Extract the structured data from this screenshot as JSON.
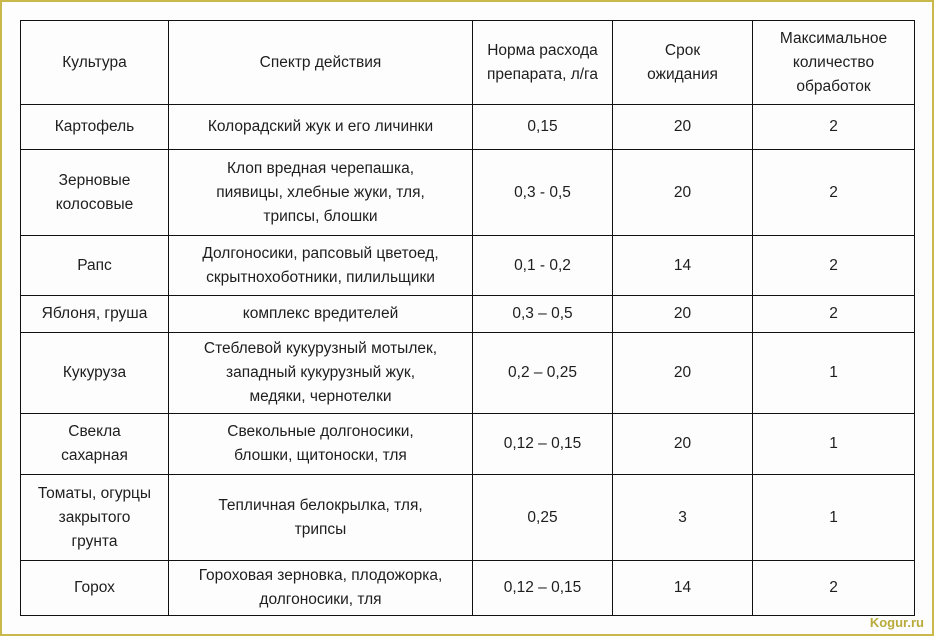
{
  "table": {
    "headers": [
      "Культура",
      "Спектр действия",
      "Норма расхода\nпрепарата, л/га",
      "Срок\nожидания",
      "Максимальное\nколичество\nобработок"
    ],
    "rows": [
      [
        "Картофель",
        "Колорадский жук и его личинки",
        "0,15",
        "20",
        "2"
      ],
      [
        "Зерновые\nколосовые",
        "Клоп вредная черепашка,\nпиявицы, хлебные жуки, тля,\nтрипсы, блошки",
        "0,3 - 0,5",
        "20",
        "2"
      ],
      [
        "Рапс",
        "Долгоносики, рапсовый цветоед,\nскрытнохоботники, пилильщики",
        "0,1 - 0,2",
        "14",
        "2"
      ],
      [
        "Яблоня, груша",
        "комплекс вредителей",
        "0,3 – 0,5",
        "20",
        "2"
      ],
      [
        "Кукуруза",
        "Стеблевой кукурузный мотылек,\nзападный кукурузный жук,\nмедяки, чернотелки",
        "0,2 – 0,25",
        "20",
        "1"
      ],
      [
        "Свекла\nсахарная",
        "Свекольные долгоносики,\nблошки, щитоноски, тля",
        "0,12 – 0,15",
        "20",
        "1"
      ],
      [
        "Томаты, огурцы\nзакрытого\nгрунта",
        "Тепличная белокрылка, тля,\nтрипсы",
        "0,25",
        "3",
        "1"
      ],
      [
        "Горох",
        "Гороховая зерновка, плодожорка,\nдолгоносики, тля",
        "0,12 – 0,15",
        "14",
        "2"
      ]
    ]
  },
  "watermark": "Kogur.ru",
  "colors": {
    "frame": "#c9b84a",
    "watermark": "#b8ab3a"
  }
}
